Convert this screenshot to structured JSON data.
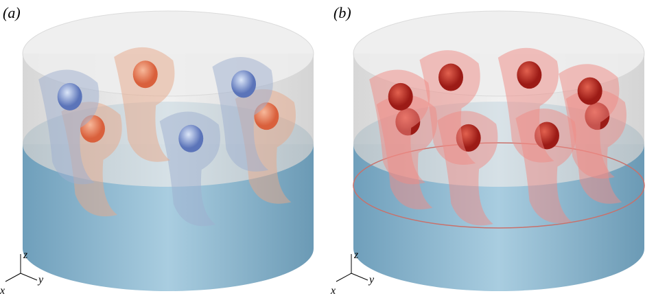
{
  "panels": [
    {
      "label": "(a)",
      "axes": {
        "z": "z",
        "x": "x",
        "y": "y"
      }
    },
    {
      "label": "(b)",
      "axes": {
        "z": "z",
        "x": "x",
        "y": "y"
      }
    }
  ]
}
